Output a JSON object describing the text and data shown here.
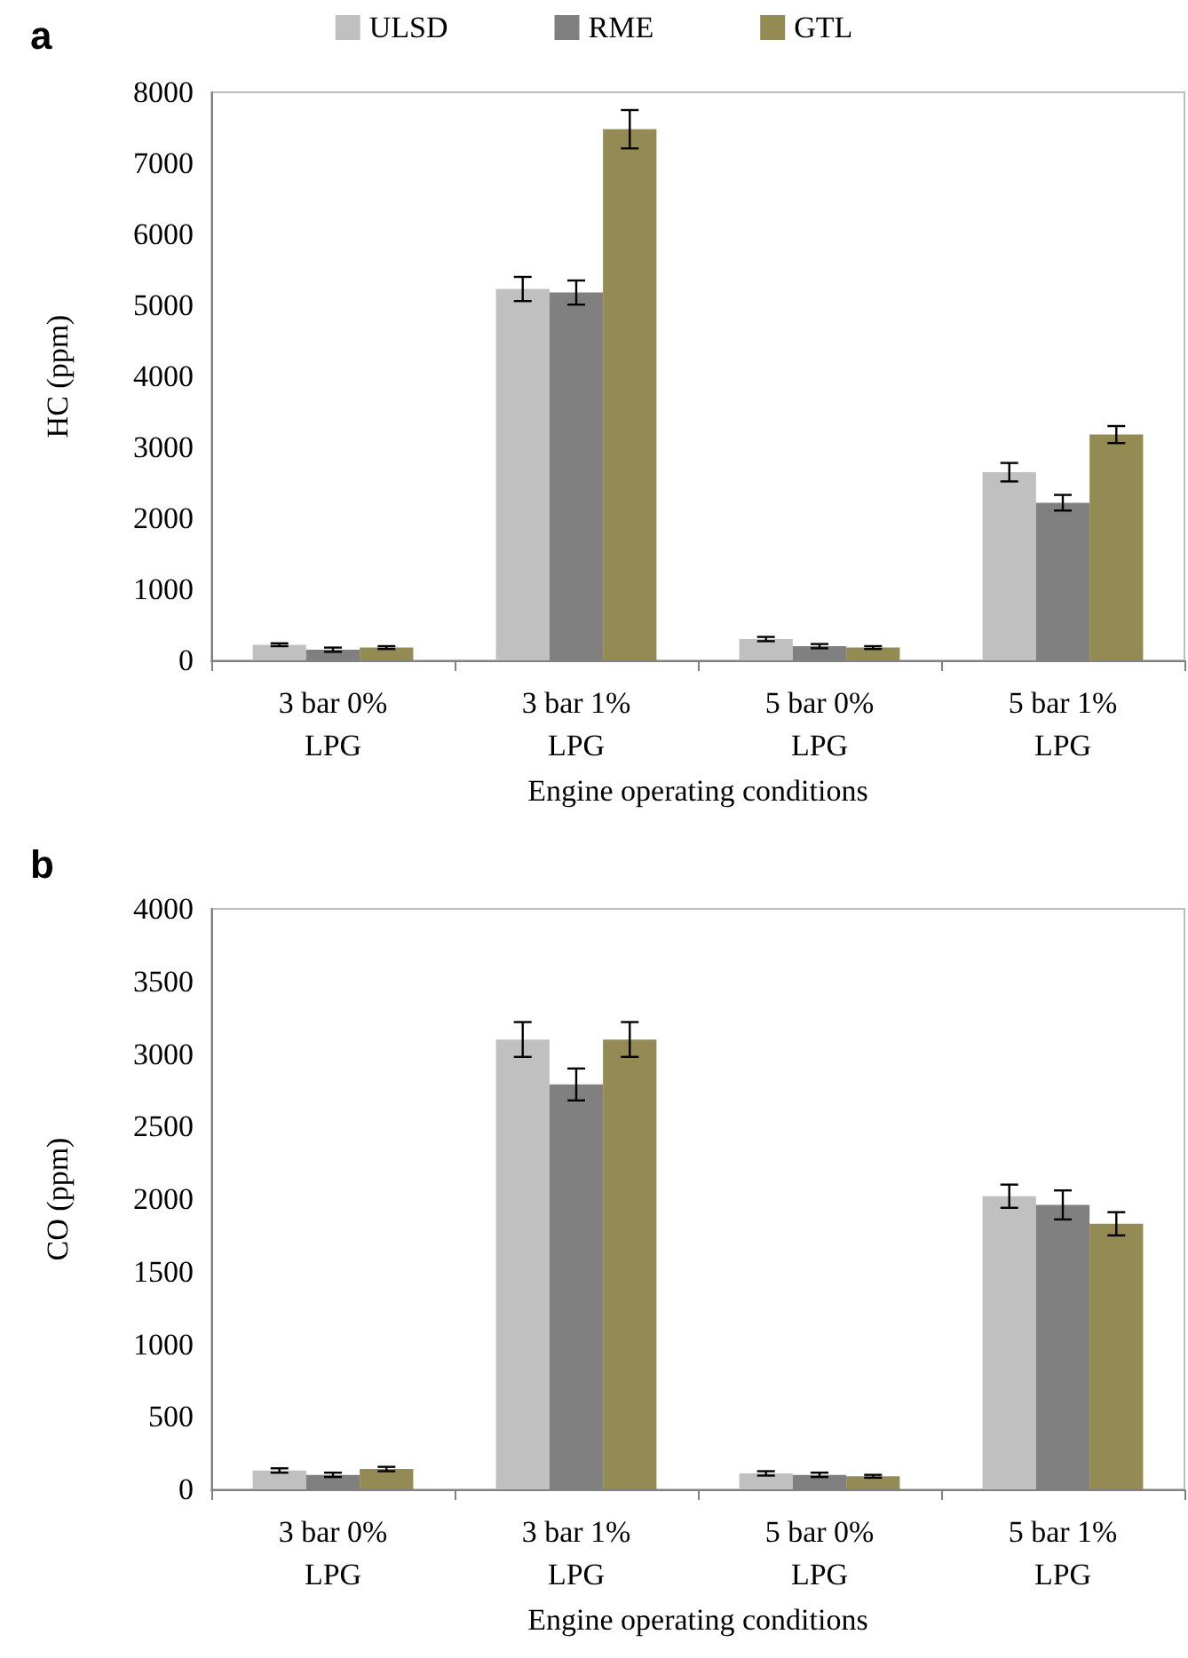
{
  "chart_data": [
    {
      "type": "bar",
      "title": "a",
      "xlabel": "Engine operating conditions",
      "ylabel": "HC (ppm)",
      "categories": [
        "3 bar 0%\nLPG",
        "3 bar 1%\nLPG",
        "5 bar 0%\nLPG",
        "5 bar 1%\nLPG"
      ],
      "series": [
        {
          "name": "ULSD",
          "color": "#c0c0c0",
          "values": [
            220,
            5230,
            300,
            2650
          ],
          "errors": [
            20,
            170,
            30,
            130
          ]
        },
        {
          "name": "RME",
          "color": "#808080",
          "values": [
            150,
            5180,
            200,
            2220
          ],
          "errors": [
            30,
            170,
            30,
            110
          ]
        },
        {
          "name": "GTL",
          "color": "#948a54",
          "values": [
            180,
            7480,
            180,
            3180
          ],
          "errors": [
            20,
            270,
            20,
            120
          ]
        }
      ],
      "ylim": [
        0,
        8000
      ],
      "yticks": [
        0,
        1000,
        2000,
        3000,
        4000,
        5000,
        6000,
        7000,
        8000
      ],
      "grid": false,
      "legend": "top"
    },
    {
      "type": "bar",
      "title": "b",
      "xlabel": "Engine operating conditions",
      "ylabel": "CO (ppm)",
      "categories": [
        "3 bar 0%\nLPG",
        "3 bar 1%\nLPG",
        "5 bar 0%\nLPG",
        "5 bar 1%\nLPG"
      ],
      "series": [
        {
          "color": "#c0c0c0",
          "values": [
            130,
            3100,
            110,
            2020
          ],
          "errors": [
            15,
            120,
            15,
            80
          ]
        },
        {
          "color": "#808080",
          "values": [
            100,
            2790,
            100,
            1960
          ],
          "errors": [
            15,
            110,
            15,
            100
          ]
        },
        {
          "color": "#948a54",
          "values": [
            140,
            3100,
            90,
            1830
          ],
          "errors": [
            15,
            120,
            10,
            80
          ]
        }
      ],
      "ylim": [
        0,
        4000
      ],
      "yticks": [
        0,
        500,
        1000,
        1500,
        2000,
        2500,
        3000,
        3500,
        4000
      ],
      "grid": false,
      "legend": false
    }
  ]
}
